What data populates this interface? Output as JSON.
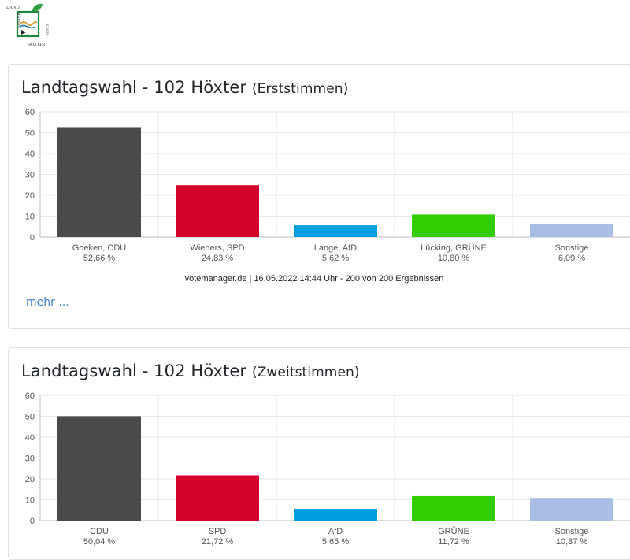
{
  "colors": {
    "CDU": "#4a4a4a",
    "SPD": "#d5002b",
    "AfD": "#009ee0",
    "GRUENE": "#32cd00",
    "Sonstige": "#a9bde6",
    "grid": "#e6e6e6",
    "axis": "#bdbdbd"
  },
  "logo": {
    "icon": "kreis-hoexter-logo"
  },
  "cards": [
    {
      "title": "Landtagswahl - 102 Höxter",
      "subtitle": "(Erststimmen)",
      "source": "votemanager.de | 16.05.2022 14:44 Uhr - 200 von 200 Ergebnissen",
      "more": "mehr ..."
    },
    {
      "title": "Landtagswahl - 102 Höxter",
      "subtitle": "(Zweitstimmen)"
    }
  ],
  "chart_data": [
    {
      "type": "bar",
      "title": "Landtagswahl - 102 Höxter (Erststimmen)",
      "categories": [
        "Goeken, CDU",
        "Wieners, SPD",
        "Lange, AfD",
        "Lücking, GRÜNE",
        "Sonstige"
      ],
      "values": [
        52.66,
        24.83,
        5.62,
        10.8,
        6.09
      ],
      "value_labels": [
        "52,66 %",
        "24,83 %",
        "5,62 %",
        "10,80 %",
        "6,09 %"
      ],
      "party_keys": [
        "CDU",
        "SPD",
        "AfD",
        "GRUENE",
        "Sonstige"
      ],
      "ylim": [
        0,
        60
      ],
      "yticks": [
        0,
        10,
        20,
        30,
        40,
        50,
        60
      ],
      "grid": true,
      "legend": "none"
    },
    {
      "type": "bar",
      "title": "Landtagswahl - 102 Höxter (Zweitstimmen)",
      "categories": [
        "CDU",
        "SPD",
        "AfD",
        "GRÜNE",
        "Sonstige"
      ],
      "values": [
        50.04,
        21.72,
        5.65,
        11.72,
        10.87
      ],
      "value_labels": [
        "50,04 %",
        "21,72 %",
        "5,65 %",
        "11,72 %",
        "10,87 %"
      ],
      "party_keys": [
        "CDU",
        "SPD",
        "AfD",
        "GRUENE",
        "Sonstige"
      ],
      "ylim": [
        0,
        60
      ],
      "yticks": [
        0,
        10,
        20,
        30,
        40,
        50,
        60
      ],
      "grid": true,
      "legend": "none"
    }
  ]
}
